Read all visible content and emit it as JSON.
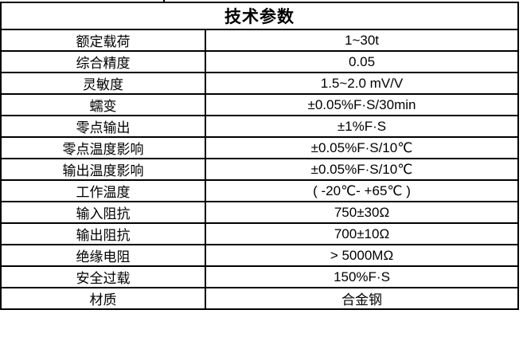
{
  "table": {
    "title": "技术参数",
    "rows": [
      {
        "label": "额定载荷",
        "value": "1~30t"
      },
      {
        "label": "综合精度",
        "value": "0.05"
      },
      {
        "label": "灵敏度",
        "value": "1.5~2.0 mV/V"
      },
      {
        "label": "蠕变",
        "value": "±0.05%F·S/30min"
      },
      {
        "label": "零点输出",
        "value": "±1%F·S"
      },
      {
        "label": "零点温度影响",
        "value": "±0.05%F·S/10℃"
      },
      {
        "label": "输出温度影响",
        "value": "±0.05%F·S/10℃"
      },
      {
        "label": "工作温度",
        "value": "( -20℃- +65℃ )"
      },
      {
        "label": "输入阻抗",
        "value": "750±30Ω"
      },
      {
        "label": "输出阻抗",
        "value": "700±10Ω"
      },
      {
        "label": "绝缘电阻",
        "value": "> 5000MΩ"
      },
      {
        "label": "安全过载",
        "value": "150%F·S"
      },
      {
        "label": "材质",
        "value": "合金钢"
      }
    ],
    "colors": {
      "border": "#000000",
      "text": "#000000",
      "background": "#ffffff"
    }
  }
}
